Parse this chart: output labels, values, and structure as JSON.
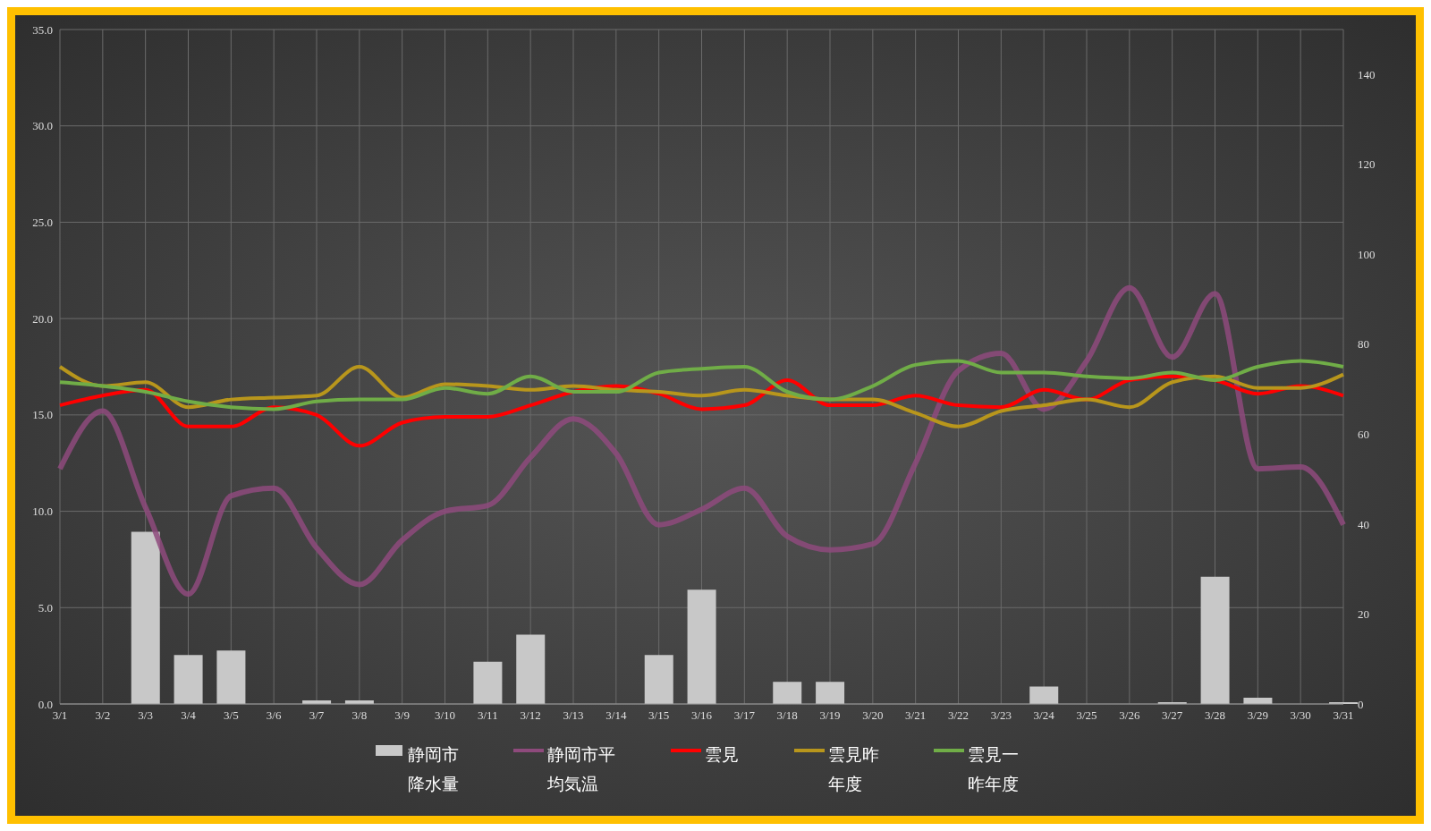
{
  "chart_data": {
    "type": "bar",
    "categories": [
      "3/1",
      "3/2",
      "3/3",
      "3/4",
      "3/5",
      "3/6",
      "3/7",
      "3/8",
      "3/9",
      "3/10",
      "3/11",
      "3/12",
      "3/13",
      "3/14",
      "3/15",
      "3/16",
      "3/17",
      "3/18",
      "3/19",
      "3/20",
      "3/21",
      "3/22",
      "3/23",
      "3/24",
      "3/25",
      "3/26",
      "3/27",
      "3/28",
      "3/29",
      "3/30",
      "3/31"
    ],
    "series": [
      {
        "name": "静岡市降水量",
        "axis": "y2",
        "color": "#c8c8c8",
        "values": [
          0,
          0,
          38.3,
          10.9,
          11.9,
          0,
          0.8,
          0.8,
          0,
          0,
          9.4,
          15.4,
          0,
          0,
          10.9,
          25.4,
          0,
          4.9,
          4.9,
          0,
          0,
          0,
          0,
          3.9,
          0,
          0,
          0.4,
          28.3,
          1.4,
          0,
          0.4
        ]
      },
      {
        "name": "静岡市平均気温",
        "type": "line",
        "color": "#8e4a7c",
        "values": [
          12.2,
          15.2,
          10.2,
          5.7,
          10.8,
          11.2,
          8.1,
          6.2,
          8.5,
          10.0,
          10.3,
          12.8,
          14.8,
          13.0,
          9.3,
          10.1,
          11.2,
          8.7,
          8.0,
          8.3,
          12.5,
          17.3,
          18.2,
          15.3,
          17.8,
          21.6,
          18.0,
          21.3,
          12.2,
          12.3,
          9.3
        ]
      },
      {
        "name": "雲見",
        "type": "line",
        "color": "#ff0000",
        "values": [
          15.5,
          16.0,
          16.3,
          14.4,
          14.4,
          15.4,
          15.0,
          13.4,
          14.6,
          14.9,
          14.9,
          15.5,
          16.2,
          16.5,
          16.1,
          15.3,
          15.5,
          16.8,
          15.5,
          15.5,
          16.0,
          15.5,
          15.4,
          16.3,
          15.8,
          16.8,
          17.0,
          16.8,
          16.1,
          16.5,
          16.0
        ]
      },
      {
        "name": "雲見昨年度",
        "type": "line",
        "color": "#b8961c",
        "values": [
          17.5,
          16.5,
          16.7,
          15.4,
          15.8,
          15.9,
          16.0,
          17.5,
          15.9,
          16.6,
          16.5,
          16.3,
          16.5,
          16.3,
          16.2,
          16.0,
          16.3,
          16.0,
          15.8,
          15.8,
          15.1,
          14.4,
          15.2,
          15.5,
          15.8,
          15.4,
          16.7,
          17.0,
          16.4,
          16.4,
          17.1
        ]
      },
      {
        "name": "雲見一昨年度",
        "type": "line",
        "color": "#70ad47",
        "values": [
          16.7,
          16.5,
          16.2,
          15.7,
          15.4,
          15.3,
          15.7,
          15.8,
          15.8,
          16.4,
          16.1,
          17.0,
          16.2,
          16.2,
          17.2,
          17.4,
          17.5,
          16.2,
          15.8,
          16.5,
          17.6,
          17.8,
          17.2,
          17.2,
          17.0,
          16.9,
          17.2,
          16.8,
          17.5,
          17.8,
          17.5
        ]
      }
    ],
    "ylim": [
      0,
      35
    ],
    "yticks": [
      {
        "value": 0,
        "label": "0.0"
      },
      {
        "value": 5,
        "label": "5.0"
      },
      {
        "value": 10,
        "label": "10.0"
      },
      {
        "value": 15,
        "label": "15.0"
      },
      {
        "value": 20,
        "label": "20.0"
      },
      {
        "value": 25,
        "label": "25.0"
      },
      {
        "value": 30,
        "label": "30.0"
      },
      {
        "value": 35,
        "label": "35.0"
      }
    ],
    "y2lim": [
      0,
      150
    ],
    "y2ticks": [
      0,
      20,
      40,
      60,
      80,
      100,
      120,
      140
    ],
    "grid": true,
    "legend": "bottom"
  }
}
